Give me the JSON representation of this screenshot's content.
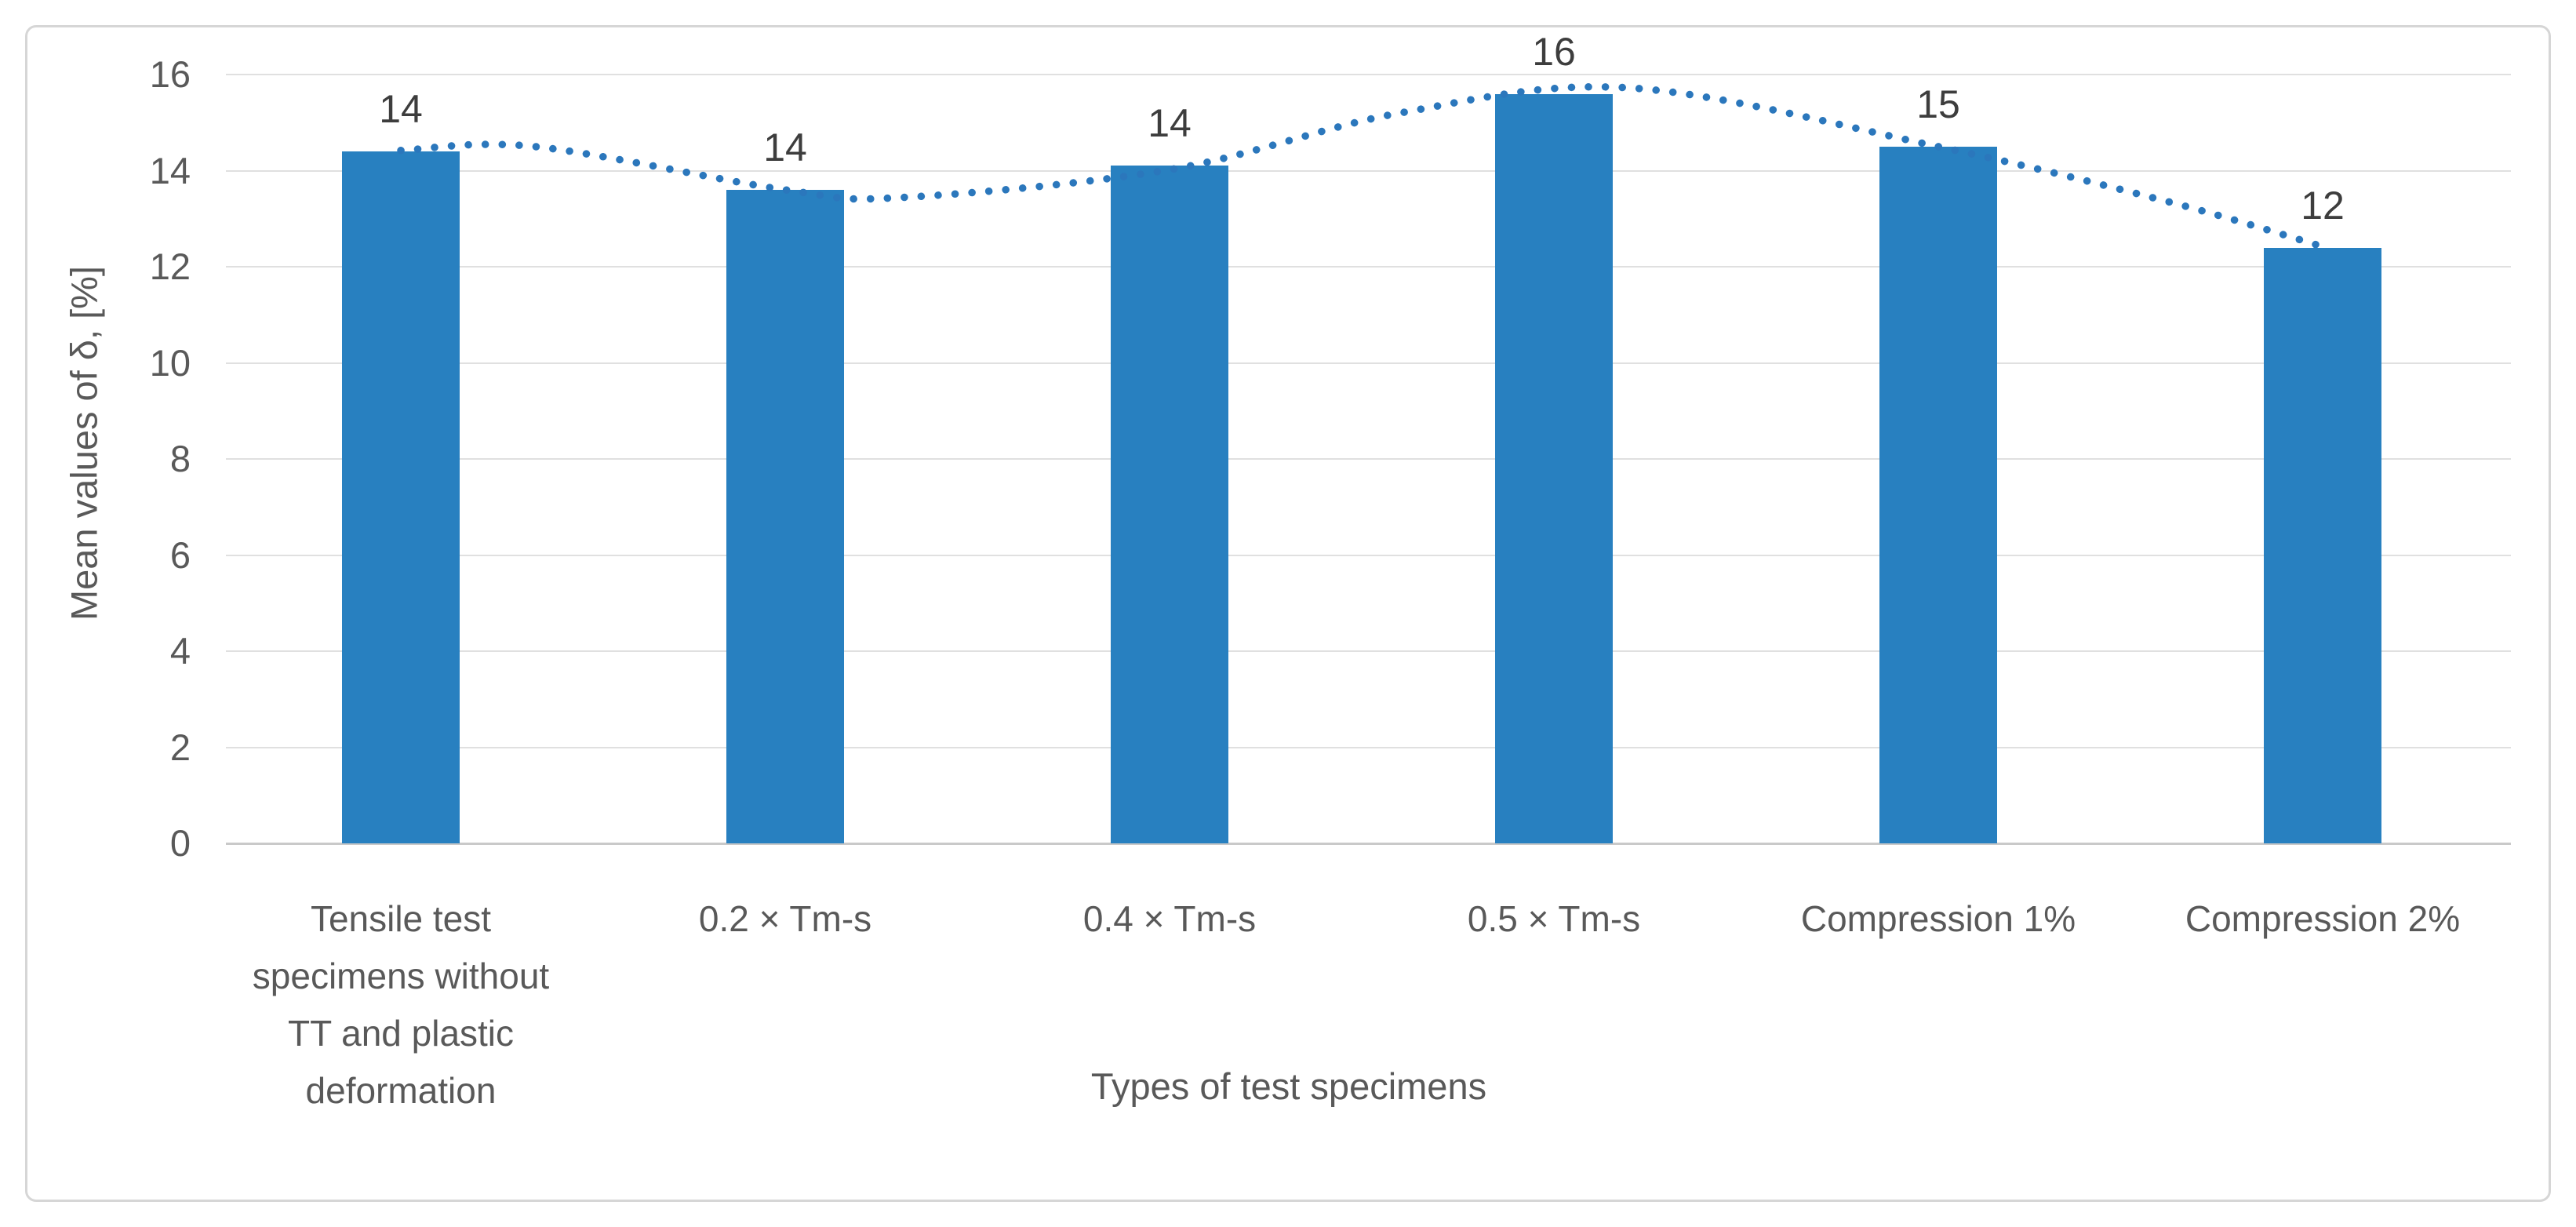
{
  "chart_data": {
    "type": "bar",
    "title": "",
    "xlabel": "Types of test specimens",
    "ylabel": "Mean values of δ, [%]",
    "categories": [
      "Tensile test\nspecimens without\nTT and plastic\ndeformation",
      "0.2 × Tm-s",
      "0.4 × Tm-s",
      "0.5 × Tm-s",
      "Compression 1%",
      "Compression 2%"
    ],
    "values": [
      14.4,
      13.6,
      14.1,
      15.6,
      14.5,
      12.4
    ],
    "bar_labels": [
      "14",
      "14",
      "14",
      "16",
      "15",
      "12"
    ],
    "ylim": [
      0,
      16
    ],
    "yticks": [
      0,
      2,
      4,
      6,
      8,
      10,
      12,
      14,
      16
    ],
    "grid": true,
    "legend": "none",
    "trendline": {
      "style": "dotted",
      "points": [
        [
          0,
          14.42
        ],
        [
          0.35,
          14.5
        ],
        [
          1,
          13.6
        ],
        [
          1.3,
          13.44
        ],
        [
          2,
          14.02
        ],
        [
          2.6,
          15.2
        ],
        [
          3.2,
          15.72
        ],
        [
          4,
          14.5
        ],
        [
          4.6,
          13.35
        ],
        [
          5,
          12.42
        ]
      ]
    },
    "colors": {
      "bar": "#2880c0",
      "trend": "#2b77bc",
      "grid": "#e0e0e0",
      "axis_line": "#c9c9c9",
      "tick_text": "#595959",
      "value_label_text": "#3d3d3d",
      "card_border": "#d6d6d6",
      "background": "#ffffff"
    }
  }
}
